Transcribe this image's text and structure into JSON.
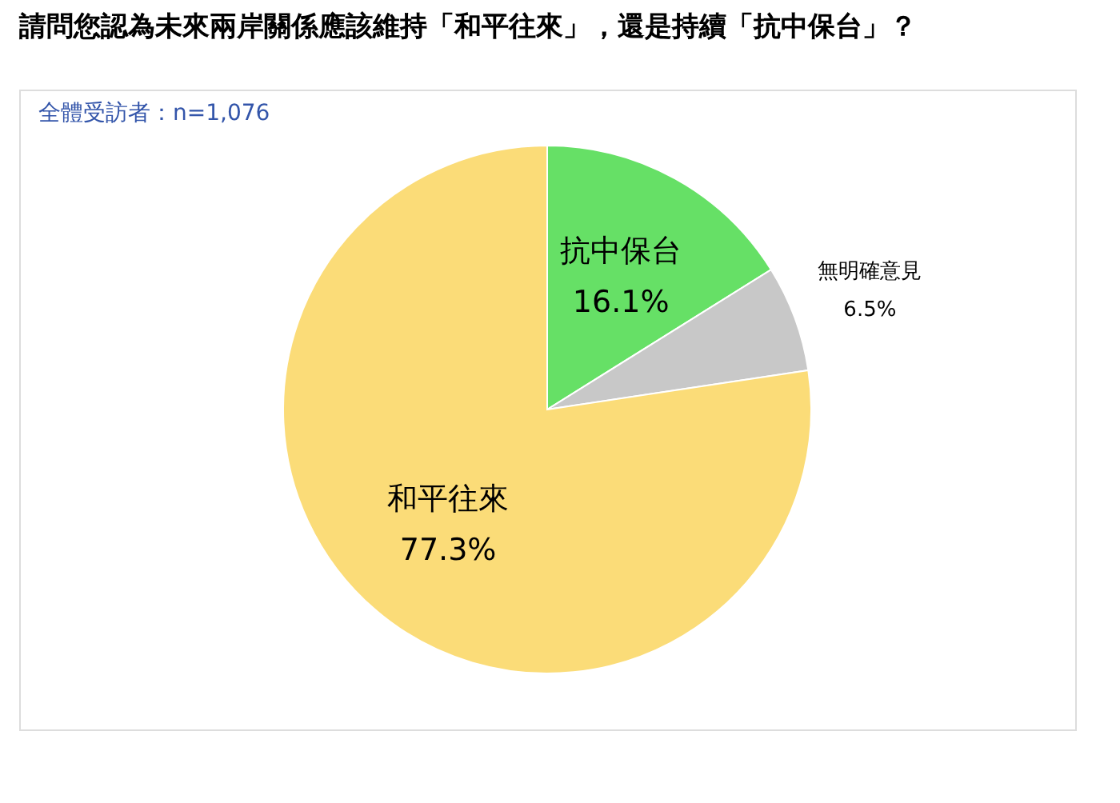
{
  "chart_data": {
    "type": "pie",
    "title": "請問您認為未來兩岸關係應該維持「和平往來」，還是持續「抗中保台」？",
    "annotations": [
      "全體受訪者：n=1,076"
    ],
    "categories": [
      "抗中保台",
      "無明確意見",
      "和平往來"
    ],
    "values": [
      16.1,
      6.5,
      77.3
    ],
    "colors": [
      "#66e066",
      "#c8c8c8",
      "#fbdc78"
    ],
    "value_labels": [
      "16.1%",
      "6.5%",
      "77.3%"
    ],
    "legend": false
  }
}
